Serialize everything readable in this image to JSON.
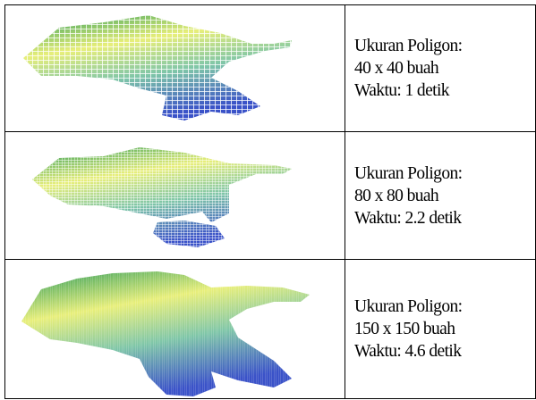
{
  "table": {
    "rows": [
      {
        "lines": [
          "Ukuran Poligon:",
          "40 x 40 buah",
          "Waktu: 1 detik"
        ]
      },
      {
        "lines": [
          "Ukuran Poligon:",
          "80 x 80 buah",
          "Waktu: 2.2 detik"
        ]
      },
      {
        "lines": [
          "Ukuran Poligon:",
          "150 x 150 buah",
          "Waktu: 4.6 detik"
        ]
      }
    ]
  }
}
